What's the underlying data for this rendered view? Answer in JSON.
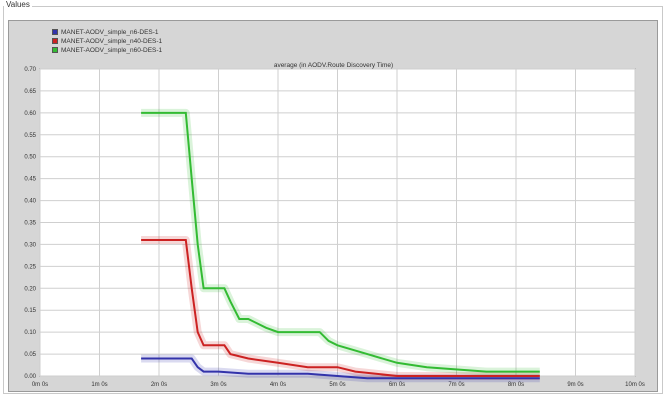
{
  "window": {
    "title": "Values"
  },
  "chart_data": {
    "type": "line",
    "title": "average (in AODV.Route Discovery Time)",
    "xlabel": "",
    "ylabel": "",
    "x_ticks": [
      "0m 0s",
      "1m 0s",
      "2m 0s",
      "3m 0s",
      "4m 0s",
      "5m 0s",
      "6m 0s",
      "7m 0s",
      "8m 0s",
      "9m 0s",
      "10m 0s"
    ],
    "y_ticks": [
      "0.00",
      "0.05",
      "0.10",
      "0.15",
      "0.20",
      "0.25",
      "0.30",
      "0.35",
      "0.40",
      "0.45",
      "0.50",
      "0.55",
      "0.60",
      "0.65",
      "0.70"
    ],
    "xlim": [
      0,
      10
    ],
    "ylim": [
      0,
      0.7
    ],
    "grid": true,
    "legend_position": "top-left",
    "series": [
      {
        "name": "MANET-AODV_simple_n6-DES-1",
        "color": "#3333aa",
        "points": [
          [
            1.7,
            0.04
          ],
          [
            2.55,
            0.04
          ],
          [
            2.65,
            0.02
          ],
          [
            2.75,
            0.01
          ],
          [
            3.0,
            0.01
          ],
          [
            3.5,
            0.005
          ],
          [
            4.5,
            0.005
          ],
          [
            5.5,
            -0.005
          ],
          [
            7.0,
            -0.005
          ],
          [
            8.4,
            -0.005
          ]
        ]
      },
      {
        "name": "MANET-AODV_simple_n40-DES-1",
        "color": "#cc2222",
        "points": [
          [
            1.7,
            0.31
          ],
          [
            2.45,
            0.31
          ],
          [
            2.55,
            0.2
          ],
          [
            2.65,
            0.1
          ],
          [
            2.75,
            0.07
          ],
          [
            3.1,
            0.07
          ],
          [
            3.2,
            0.05
          ],
          [
            3.5,
            0.04
          ],
          [
            4.0,
            0.03
          ],
          [
            4.5,
            0.02
          ],
          [
            5.0,
            0.02
          ],
          [
            5.3,
            0.01
          ],
          [
            6.0,
            0.0
          ],
          [
            7.0,
            0.0
          ],
          [
            8.4,
            0.0
          ]
        ]
      },
      {
        "name": "MANET-AODV_simple_n60-DES-1",
        "color": "#33bb33",
        "points": [
          [
            1.7,
            0.6
          ],
          [
            2.45,
            0.6
          ],
          [
            2.55,
            0.45
          ],
          [
            2.65,
            0.3
          ],
          [
            2.75,
            0.2
          ],
          [
            3.1,
            0.2
          ],
          [
            3.2,
            0.17
          ],
          [
            3.35,
            0.13
          ],
          [
            3.5,
            0.13
          ],
          [
            3.8,
            0.11
          ],
          [
            4.0,
            0.1
          ],
          [
            4.7,
            0.1
          ],
          [
            4.85,
            0.08
          ],
          [
            5.0,
            0.07
          ],
          [
            5.5,
            0.05
          ],
          [
            6.0,
            0.03
          ],
          [
            6.5,
            0.02
          ],
          [
            7.5,
            0.01
          ],
          [
            8.4,
            0.01
          ]
        ]
      }
    ]
  }
}
